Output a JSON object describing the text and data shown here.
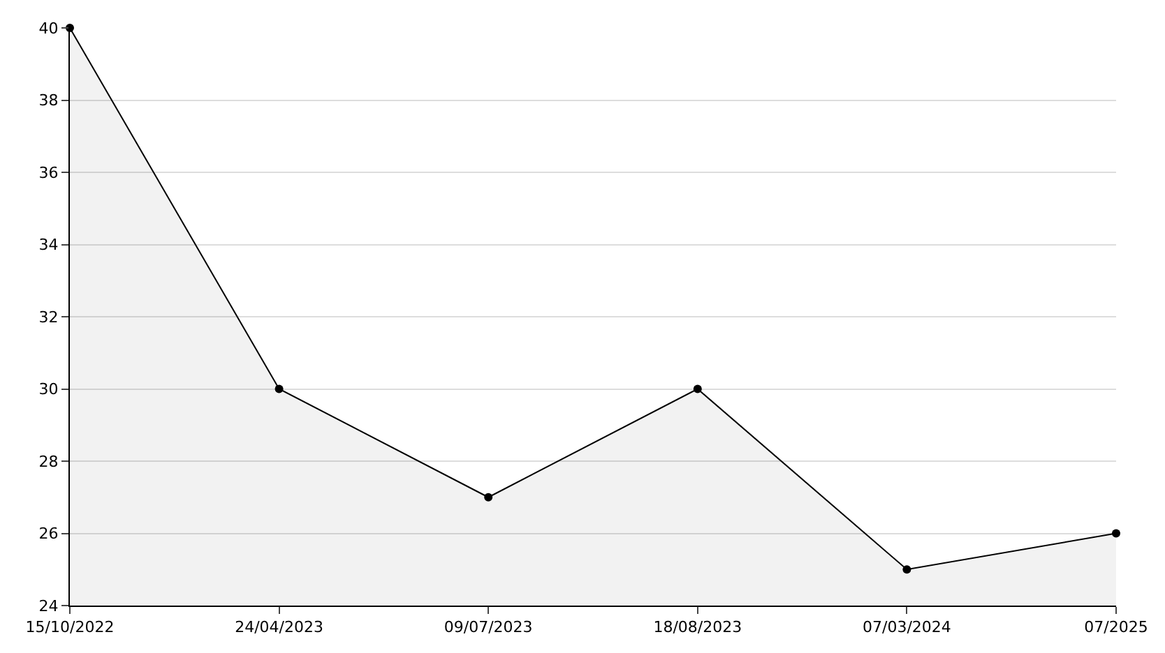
{
  "chart_data": {
    "type": "area",
    "categories": [
      "15/10/2022",
      "24/04/2023",
      "09/07/2023",
      "18/08/2023",
      "07/03/2024",
      "07/2025"
    ],
    "series": [
      {
        "color": "#000000",
        "values": [
          40,
          30,
          27,
          30,
          25,
          26
        ]
      }
    ],
    "ylim": [
      24,
      40
    ],
    "yticks": [
      24,
      26,
      28,
      30,
      32,
      34,
      36,
      38,
      40
    ],
    "grid": "y",
    "legend": false,
    "marker": "circle",
    "line_style": "solid"
  }
}
